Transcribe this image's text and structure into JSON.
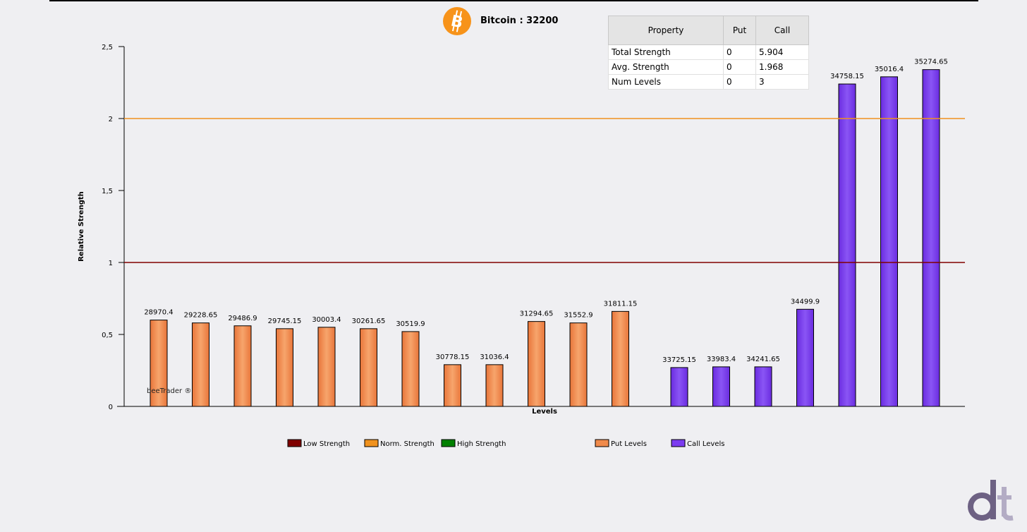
{
  "header": {
    "title": "Bitcoin : 32200",
    "logo_icon": "bitcoin-logo-icon"
  },
  "property_table": {
    "headers": [
      "Property",
      "Put",
      "Call"
    ],
    "rows": [
      [
        "Total Strength",
        "0",
        "5.904"
      ],
      [
        "Avg. Strength",
        "0",
        "1.968"
      ],
      [
        "Num Levels",
        "0",
        "3"
      ]
    ]
  },
  "watermark": "beeTrader ®",
  "brand_logo_icon": "dt-logo-icon",
  "colors": {
    "put": "#f08a4b",
    "call": "#7b3cf0",
    "low_strength": "#800000",
    "norm_strength": "#f0921e",
    "high_strength": "#008000"
  },
  "chart_data": {
    "type": "bar",
    "xlabel": "Levels",
    "ylabel": "Relative Strength",
    "ylim": [
      0,
      2.5
    ],
    "yticks": [
      "0",
      "0,5",
      "1",
      "1,5",
      "2",
      "2,5"
    ],
    "grid": false,
    "legend_position": "bottom",
    "reference_lines": [
      {
        "name": "Low Strength",
        "y": 1
      },
      {
        "name": "Norm. Strength",
        "y": 2
      }
    ],
    "legend": [
      "Low Strength",
      "Norm. Strength",
      "High Strength",
      "Put Levels",
      "Call Levels"
    ],
    "series": [
      {
        "name": "Put Levels",
        "categories": [
          "28970.4",
          "29228.65",
          "29486.9",
          "29745.15",
          "30003.4",
          "30261.65",
          "30519.9",
          "30778.15",
          "31036.4",
          "31294.65",
          "31552.9",
          "31811.15"
        ],
        "values": [
          0.6,
          0.58,
          0.56,
          0.54,
          0.55,
          0.54,
          0.52,
          0.29,
          0.29,
          0.59,
          0.58,
          0.66
        ]
      },
      {
        "name": "Call Levels",
        "categories": [
          "33725.15",
          "33983.4",
          "34241.65",
          "34499.9",
          "34758.15",
          "35016.4",
          "35274.65"
        ],
        "values": [
          0.27,
          0.275,
          0.275,
          0.675,
          2.24,
          2.29,
          2.34
        ]
      }
    ]
  }
}
